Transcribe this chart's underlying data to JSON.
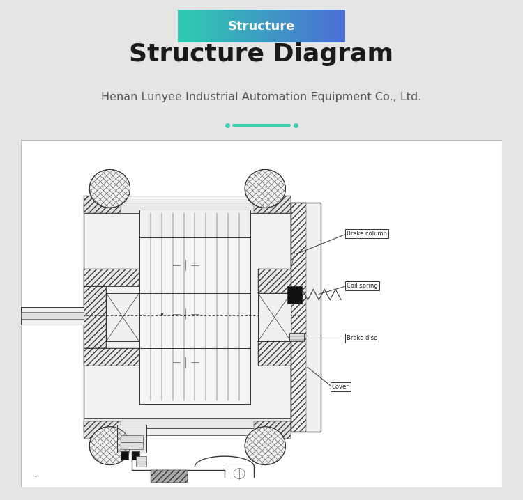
{
  "bg_color": "#e5e5e5",
  "diagram_bg": "#ffffff",
  "title_badge_text": "Structure",
  "main_title": "Structure Diagram",
  "subtitle": "Henan Lunyee Industrial Automation Equipment Co., Ltd.",
  "accent_color": "#3ecfb2",
  "line_color": "#333333",
  "lc_hatch": "#555555"
}
